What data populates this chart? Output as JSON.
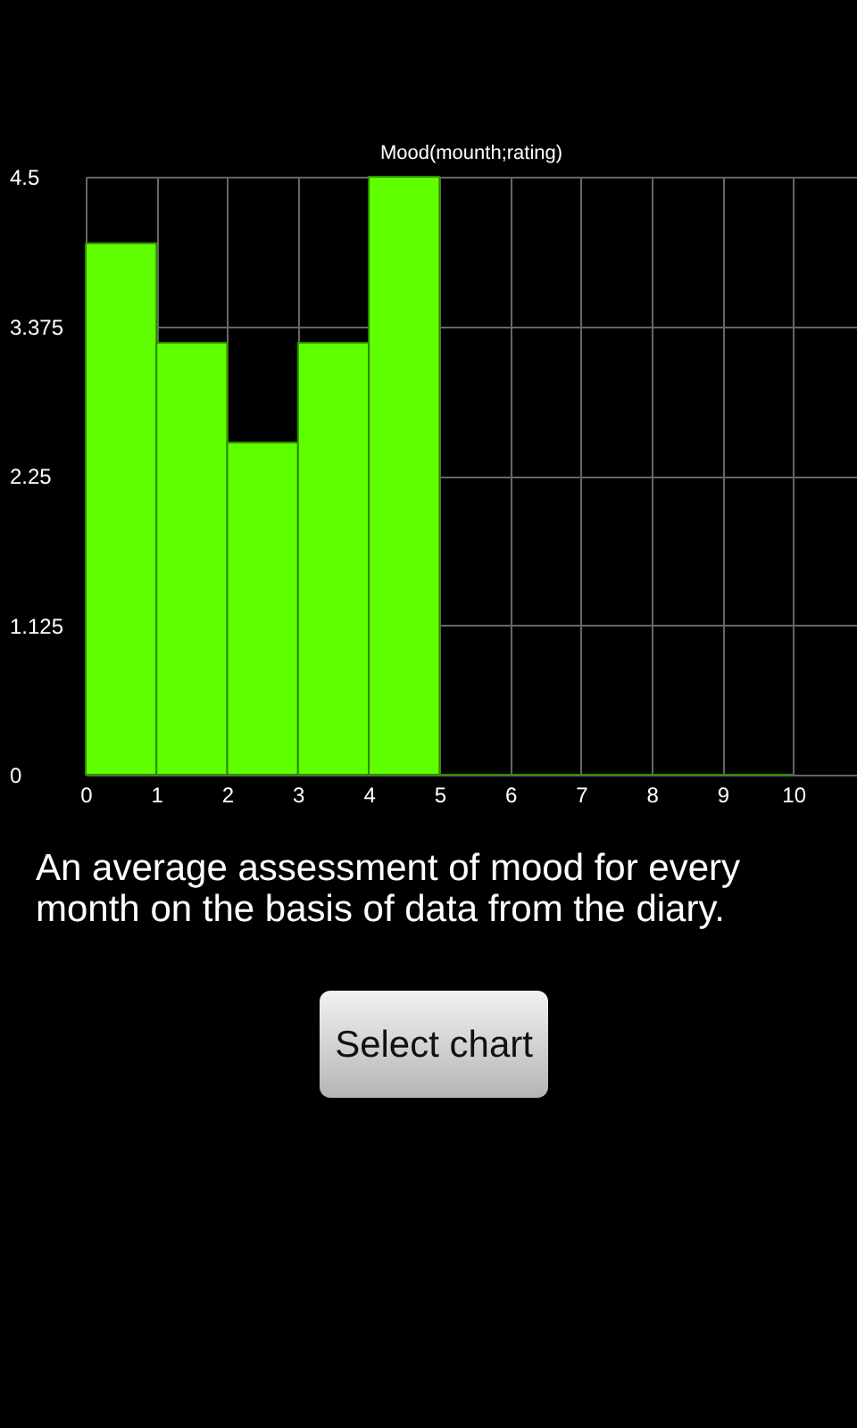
{
  "chart_data": {
    "type": "histogram",
    "title": "Mood(mounth;rating)",
    "bins": [
      0,
      1,
      2,
      3,
      4,
      5,
      6,
      7,
      8,
      9,
      10
    ],
    "values": [
      4.0,
      3.25,
      2.5,
      3.25,
      4.5,
      0,
      0,
      0,
      0,
      0
    ],
    "color": "#60ff00",
    "xlim": [
      0,
      10.9
    ],
    "xticks": [
      0,
      1,
      2,
      3,
      4,
      5,
      6,
      7,
      8,
      9,
      10
    ],
    "ylim": [
      0,
      4.5
    ],
    "yticks": [
      0,
      1.125,
      2.25,
      3.375,
      4.5
    ],
    "grid": true,
    "annotations": [
      "An average assessment of mood for every month on the basis of data from the diary.",
      "Select chart"
    ]
  }
}
